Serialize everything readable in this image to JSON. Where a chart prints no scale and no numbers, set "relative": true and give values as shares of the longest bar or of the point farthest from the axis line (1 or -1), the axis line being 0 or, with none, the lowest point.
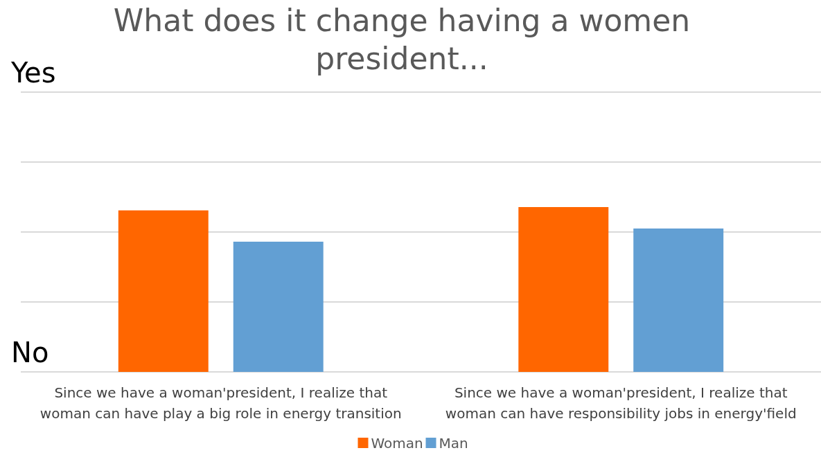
{
  "chart_data": {
    "type": "bar",
    "title": "What does it change having a women president...",
    "categories": [
      "Since we have a woman'president, I realize that woman can have play a big role in energy transition",
      "Since we have a woman'president, I realize that woman can have responsibility jobs in energy'field"
    ],
    "series": [
      {
        "name": "Woman",
        "color": "#ff6600",
        "values": [
          0.98,
          1
        ]
      },
      {
        "name": "Man",
        "color": "#629fd3",
        "values": [
          0.79,
          0.87
        ]
      }
    ],
    "relative": true,
    "annotations": [
      "Yes",
      "No"
    ],
    "ref_lines": [
      {
        "axis": "y",
        "value": 0.4244,
        "color": "#d9d9d9"
      },
      {
        "axis": "y",
        "value": 0.8487,
        "color": "#d9d9d9"
      },
      {
        "axis": "y",
        "value": 1.2731,
        "color": "#d9d9d9"
      },
      {
        "axis": "y",
        "value": 1.6975,
        "color": "#d9d9d9"
      }
    ],
    "legend": "bottom"
  }
}
